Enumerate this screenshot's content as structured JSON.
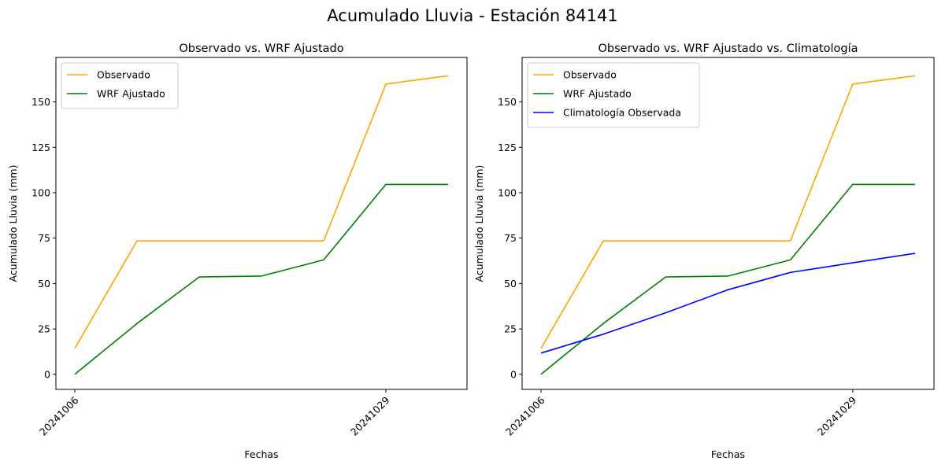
{
  "figure": {
    "suptitle": "Acumulado Lluvia - Estación 84141"
  },
  "chart_data": [
    {
      "type": "line",
      "title": "Observado vs. WRF Ajustado",
      "xlabel": "Fechas",
      "ylabel": "Acumulado Lluvia (mm)",
      "x_tick_labels": [
        "20241006",
        "20241029"
      ],
      "y_ticks": [
        0,
        25,
        50,
        75,
        100,
        125,
        150
      ],
      "ylim": [
        -8.3,
        174.5
      ],
      "legend_position": "upper left",
      "series": [
        {
          "name": "Observado",
          "color": "#ffa500",
          "values": [
            14.3,
            73.5,
            73.5,
            73.5,
            73.5,
            159.8,
            164.4
          ]
        },
        {
          "name": "WRF Ajustado",
          "color": "#008000",
          "values": [
            0.0,
            28.0,
            53.6,
            54.1,
            63.0,
            104.6,
            104.6
          ]
        }
      ]
    },
    {
      "type": "line",
      "title": "Observado vs. WRF Ajustado vs. Climatología",
      "xlabel": "Fechas",
      "ylabel": "Acumulado Lluvia (mm)",
      "x_tick_labels": [
        "20241006",
        "20241029"
      ],
      "y_ticks": [
        0,
        25,
        50,
        75,
        100,
        125,
        150
      ],
      "ylim": [
        -8.3,
        174.5
      ],
      "legend_position": "upper left",
      "series": [
        {
          "name": "Observado",
          "color": "#ffa500",
          "values": [
            14.3,
            73.5,
            73.5,
            73.5,
            73.5,
            159.8,
            164.4
          ]
        },
        {
          "name": "WRF Ajustado",
          "color": "#008000",
          "values": [
            0.0,
            28.0,
            53.6,
            54.1,
            63.0,
            104.6,
            104.6
          ]
        },
        {
          "name": "Climatología Observada",
          "color": "#0000ff",
          "values": [
            11.7,
            22.1,
            33.9,
            46.6,
            56.1,
            61.4,
            66.6
          ]
        }
      ]
    }
  ]
}
